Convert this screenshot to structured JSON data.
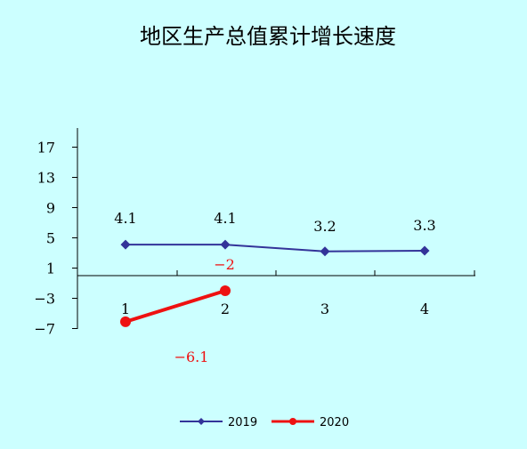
{
  "chart_data": {
    "type": "line",
    "title": "地区生产总值累计增长速度",
    "categories": [
      "1",
      "2",
      "3",
      "4"
    ],
    "y_ticks": [
      "17",
      "13",
      "9",
      "5",
      "1",
      "-3",
      "-7"
    ],
    "ylim": [
      -7,
      17
    ],
    "grid": false,
    "legend": "bottom",
    "series": [
      {
        "name": "2019",
        "values": [
          4.1,
          4.1,
          3.2,
          3.3
        ],
        "labels": [
          "4.1",
          "4.1",
          "3.2",
          "3.3"
        ],
        "color": "#333399",
        "marker": "diamond"
      },
      {
        "name": "2020",
        "values": [
          -6.1,
          -2,
          null,
          null
        ],
        "labels": [
          "-6.1",
          "-2",
          "",
          ""
        ],
        "color": "#ee1111",
        "marker": "circle"
      }
    ]
  },
  "colors": {
    "background": "#ccffff",
    "axis": "#000000"
  }
}
